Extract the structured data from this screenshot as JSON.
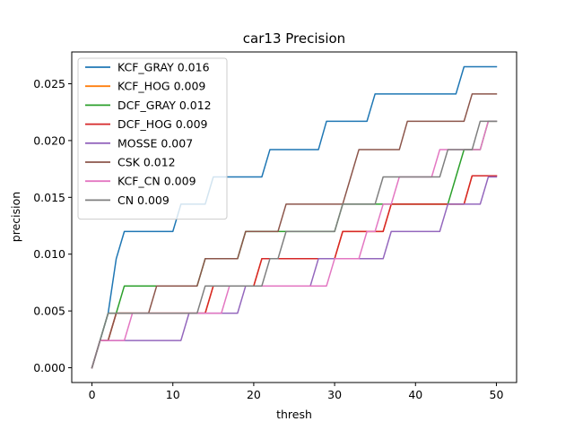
{
  "chart_data": {
    "type": "line",
    "title": "car13 Precision",
    "xlabel": "thresh",
    "ylabel": "precision",
    "xlim": [
      -2.5,
      52.5
    ],
    "ylim": [
      -0.0013,
      0.0278
    ],
    "xticks": [
      0,
      10,
      20,
      30,
      40,
      50
    ],
    "yticks": [
      0.0,
      0.005,
      0.01,
      0.015,
      0.02,
      0.025
    ],
    "ytick_labels": [
      "0.000",
      "0.005",
      "0.010",
      "0.015",
      "0.020",
      "0.025"
    ],
    "grid": false,
    "legend_position": "upper left",
    "x": [
      0,
      1,
      2,
      3,
      4,
      5,
      6,
      7,
      8,
      9,
      10,
      11,
      12,
      13,
      14,
      15,
      16,
      17,
      18,
      19,
      20,
      21,
      22,
      23,
      24,
      25,
      26,
      27,
      28,
      29,
      30,
      31,
      32,
      33,
      34,
      35,
      36,
      37,
      38,
      39,
      40,
      41,
      42,
      43,
      44,
      45,
      46,
      47,
      48,
      49,
      50
    ],
    "series": [
      {
        "name": "KCF_GRAY 0.016",
        "color": "#1f77b4",
        "values": [
          0,
          0.0024,
          0.0048,
          0.0096,
          0.012,
          0.012,
          0.012,
          0.012,
          0.012,
          0.012,
          0.012,
          0.0144,
          0.0144,
          0.0144,
          0.0144,
          0.0168,
          0.0168,
          0.0168,
          0.0168,
          0.0168,
          0.0168,
          0.0168,
          0.0192,
          0.0192,
          0.0192,
          0.0192,
          0.0192,
          0.0192,
          0.0192,
          0.0217,
          0.0217,
          0.0217,
          0.0217,
          0.0217,
          0.0217,
          0.0241,
          0.0241,
          0.0241,
          0.0241,
          0.0241,
          0.0241,
          0.0241,
          0.0241,
          0.0241,
          0.0241,
          0.0241,
          0.0265,
          0.0265,
          0.0265,
          0.0265,
          0.0265
        ]
      },
      {
        "name": "KCF_HOG 0.009",
        "color": "#ff7f0e",
        "values": [
          0,
          0.0024,
          0.0024,
          0.0048,
          0.0048,
          0.0048,
          0.0048,
          0.0048,
          0.0048,
          0.0048,
          0.0048,
          0.0048,
          0.0048,
          0.0048,
          0.0048,
          0.0072,
          0.0072,
          0.0072,
          0.0072,
          0.0072,
          0.0072,
          0.0096,
          0.0096,
          0.0096,
          0.0096,
          0.0096,
          0.0096,
          0.0096,
          0.0096,
          0.0096,
          0.0096,
          0.012,
          0.012,
          0.012,
          0.012,
          0.012,
          0.012,
          0.0144,
          0.0144,
          0.0144,
          0.0144,
          0.0144,
          0.0144,
          0.0144,
          0.0144,
          0.0144,
          0.0144,
          0.0169,
          0.0169,
          0.0169,
          0.0169
        ]
      },
      {
        "name": "DCF_GRAY 0.012",
        "color": "#2ca02c",
        "values": [
          0,
          0.0024,
          0.0048,
          0.0048,
          0.0072,
          0.0072,
          0.0072,
          0.0072,
          0.0072,
          0.0072,
          0.0072,
          0.0072,
          0.0072,
          0.0072,
          0.0096,
          0.0096,
          0.0096,
          0.0096,
          0.0096,
          0.012,
          0.012,
          0.012,
          0.012,
          0.012,
          0.012,
          0.012,
          0.012,
          0.012,
          0.012,
          0.012,
          0.012,
          0.0144,
          0.0144,
          0.0144,
          0.0144,
          0.0144,
          0.0144,
          0.0144,
          0.0144,
          0.0144,
          0.0144,
          0.0144,
          0.0144,
          0.0144,
          0.0144,
          0.0168,
          0.0192,
          0.0192,
          0.0192,
          0.0217,
          0.0217
        ]
      },
      {
        "name": "DCF_HOG 0.009",
        "color": "#d62728",
        "values": [
          0,
          0.0024,
          0.0024,
          0.0048,
          0.0048,
          0.0048,
          0.0048,
          0.0048,
          0.0048,
          0.0048,
          0.0048,
          0.0048,
          0.0048,
          0.0048,
          0.0048,
          0.0072,
          0.0072,
          0.0072,
          0.0072,
          0.0072,
          0.0072,
          0.0096,
          0.0096,
          0.0096,
          0.0096,
          0.0096,
          0.0096,
          0.0096,
          0.0096,
          0.0096,
          0.0096,
          0.012,
          0.012,
          0.012,
          0.012,
          0.012,
          0.012,
          0.0144,
          0.0144,
          0.0144,
          0.0144,
          0.0144,
          0.0144,
          0.0144,
          0.0144,
          0.0144,
          0.0144,
          0.0169,
          0.0169,
          0.0169,
          0.0169
        ]
      },
      {
        "name": "MOSSE 0.007",
        "color": "#9467bd",
        "values": [
          0,
          0.0024,
          0.0024,
          0.0024,
          0.0024,
          0.0024,
          0.0024,
          0.0024,
          0.0024,
          0.0024,
          0.0024,
          0.0024,
          0.0048,
          0.0048,
          0.0048,
          0.0048,
          0.0048,
          0.0048,
          0.0048,
          0.0072,
          0.0072,
          0.0072,
          0.0072,
          0.0072,
          0.0072,
          0.0072,
          0.0072,
          0.0072,
          0.0096,
          0.0096,
          0.0096,
          0.0096,
          0.0096,
          0.0096,
          0.0096,
          0.0096,
          0.0096,
          0.012,
          0.012,
          0.012,
          0.012,
          0.012,
          0.012,
          0.012,
          0.0144,
          0.0144,
          0.0144,
          0.0144,
          0.0144,
          0.0168,
          0.0168
        ]
      },
      {
        "name": "CSK 0.012",
        "color": "#8c564b",
        "values": [
          0,
          0.0024,
          0.0024,
          0.0048,
          0.0048,
          0.0048,
          0.0048,
          0.0048,
          0.0072,
          0.0072,
          0.0072,
          0.0072,
          0.0072,
          0.0072,
          0.0096,
          0.0096,
          0.0096,
          0.0096,
          0.0096,
          0.012,
          0.012,
          0.012,
          0.012,
          0.012,
          0.0144,
          0.0144,
          0.0144,
          0.0144,
          0.0144,
          0.0144,
          0.0144,
          0.0144,
          0.0168,
          0.0192,
          0.0192,
          0.0192,
          0.0192,
          0.0192,
          0.0192,
          0.0217,
          0.0217,
          0.0217,
          0.0217,
          0.0217,
          0.0217,
          0.0217,
          0.0217,
          0.0241,
          0.0241,
          0.0241,
          0.0241
        ]
      },
      {
        "name": "KCF_CN 0.009",
        "color": "#e377c2",
        "values": [
          0,
          0.0024,
          0.0024,
          0.0024,
          0.0024,
          0.0048,
          0.0048,
          0.0048,
          0.0048,
          0.0048,
          0.0048,
          0.0048,
          0.0048,
          0.0048,
          0.0048,
          0.0048,
          0.0048,
          0.0072,
          0.0072,
          0.0072,
          0.0072,
          0.0072,
          0.0072,
          0.0072,
          0.0072,
          0.0072,
          0.0072,
          0.0072,
          0.0072,
          0.0072,
          0.0096,
          0.0096,
          0.0096,
          0.0096,
          0.012,
          0.012,
          0.0144,
          0.0144,
          0.0168,
          0.0168,
          0.0168,
          0.0168,
          0.0168,
          0.0192,
          0.0192,
          0.0192,
          0.0192,
          0.0192,
          0.0192,
          0.0217,
          0.0217
        ]
      },
      {
        "name": "CN 0.009",
        "color": "#7f7f7f",
        "values": [
          0,
          0.0024,
          0.0048,
          0.0048,
          0.0048,
          0.0048,
          0.0048,
          0.0048,
          0.0048,
          0.0048,
          0.0048,
          0.0048,
          0.0048,
          0.0048,
          0.0072,
          0.0072,
          0.0072,
          0.0072,
          0.0072,
          0.0072,
          0.0072,
          0.0072,
          0.0096,
          0.0096,
          0.012,
          0.012,
          0.012,
          0.012,
          0.012,
          0.012,
          0.012,
          0.0144,
          0.0144,
          0.0144,
          0.0144,
          0.0144,
          0.0168,
          0.0168,
          0.0168,
          0.0168,
          0.0168,
          0.0168,
          0.0168,
          0.0168,
          0.0192,
          0.0192,
          0.0192,
          0.0192,
          0.0217,
          0.0217,
          0.0217
        ]
      }
    ]
  }
}
